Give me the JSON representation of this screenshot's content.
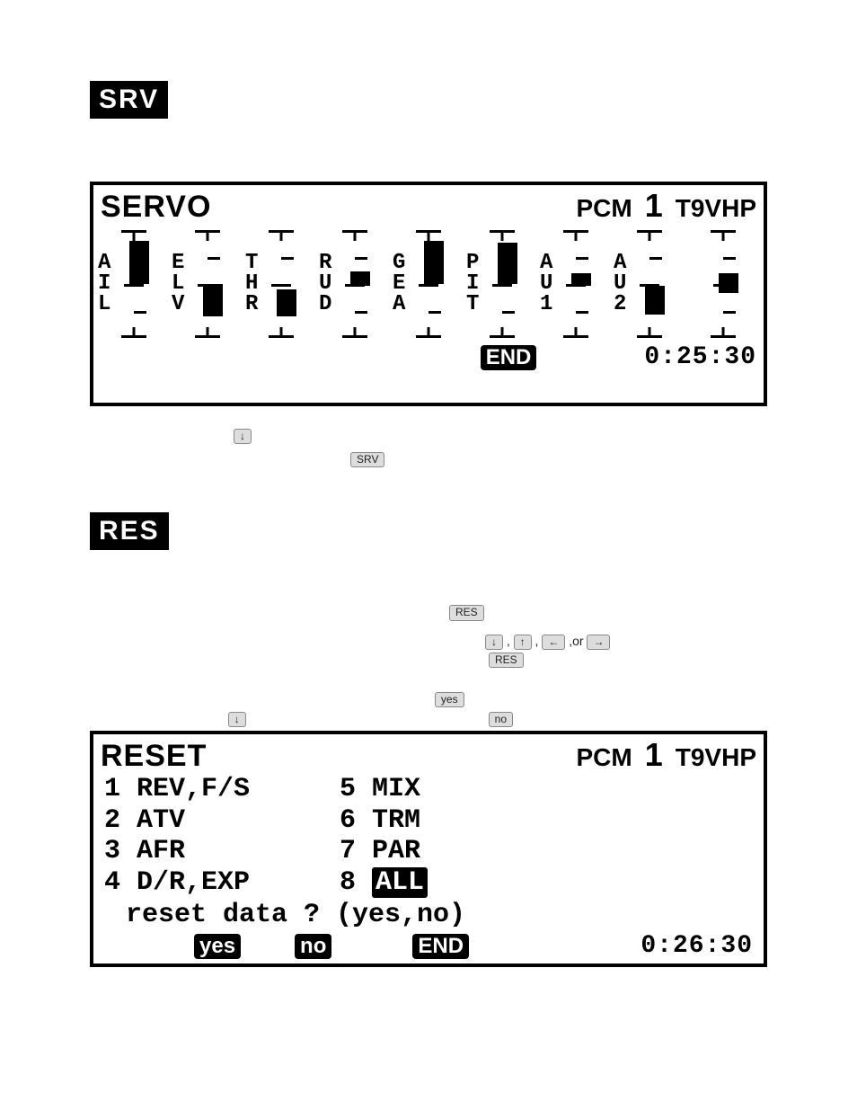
{
  "srv_section": {
    "label": "SRV",
    "lcd": {
      "title": "SERVO",
      "mode": "PCM",
      "model_num": "1",
      "model_name": "T9VHP",
      "end_label": "END",
      "timer": "0:25:30",
      "channels": [
        {
          "label": "A\nI\nL",
          "bar_top_pct": 10,
          "bar_height_pct": 40
        },
        {
          "label": "E\nL\nV",
          "bar_top_pct": 50,
          "bar_height_pct": 30
        },
        {
          "label": "T\nH\nR",
          "bar_top_pct": 55,
          "bar_height_pct": 25
        },
        {
          "label": "R\nU\nD",
          "bar_top_pct": 38,
          "bar_height_pct": 14
        },
        {
          "label": "G\nE\nA",
          "bar_top_pct": 10,
          "bar_height_pct": 40
        },
        {
          "label": "P\nI\nT",
          "bar_top_pct": 12,
          "bar_height_pct": 38
        },
        {
          "label": "A\nU\n1",
          "bar_top_pct": 40,
          "bar_height_pct": 12
        },
        {
          "label": "A\nU\n2",
          "bar_top_pct": 52,
          "bar_height_pct": 26
        },
        {
          "label": "",
          "bar_top_pct": 40,
          "bar_height_pct": 18
        }
      ]
    },
    "hint_keys": {
      "down": "↓",
      "srv": "SRV"
    }
  },
  "res_section": {
    "label": "RES",
    "hint": {
      "res": "RES",
      "arrows": {
        "down": "↓",
        "up": "↑",
        "left": "←",
        "right": "→",
        "or": ",or"
      },
      "yes": "yes",
      "no": "no",
      "down": "↓"
    },
    "lcd": {
      "title": "RESET",
      "mode": "PCM",
      "model_num": "1",
      "model_name": "T9VHP",
      "items_left": [
        {
          "n": "1",
          "t": "REV,F/S"
        },
        {
          "n": "2",
          "t": "ATV"
        },
        {
          "n": "3",
          "t": "AFR"
        },
        {
          "n": "4",
          "t": "D/R,EXP"
        }
      ],
      "items_right": [
        {
          "n": "5",
          "t": "MIX"
        },
        {
          "n": "6",
          "t": "TRM"
        },
        {
          "n": "7",
          "t": "PAR"
        },
        {
          "n": "8",
          "t": "ALL",
          "selected": true
        }
      ],
      "prompt": "reset data ? (yes,no)",
      "yes_label": "yes",
      "no_label": "no",
      "end_label": "END",
      "timer": "0:26:30"
    }
  }
}
